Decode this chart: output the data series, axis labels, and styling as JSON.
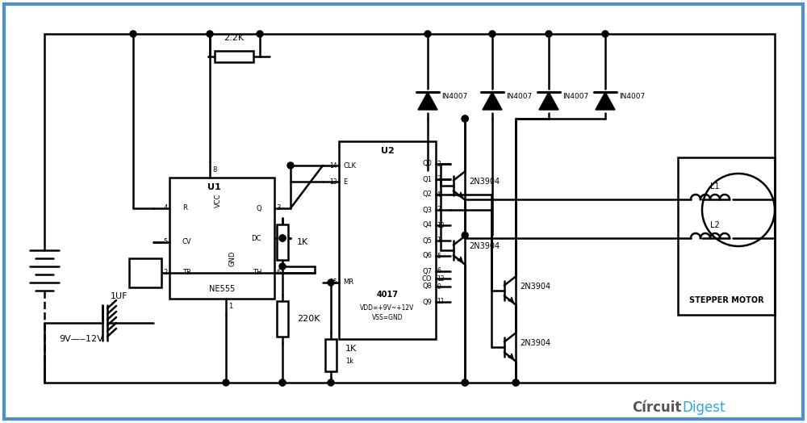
{
  "bg_color": "#ffffff",
  "border_color": "#4a90d9",
  "border_width": 3,
  "line_color": "#000000",
  "line_width": 1.5,
  "watermark_circuit": "Círcuit",
  "watermark_digest": "Digest",
  "watermark_color_circuit": "#555555",
  "watermark_color_digest": "#29abe2",
  "r1_label": "2.2K",
  "r2_label": "1K",
  "r3_label": "220K",
  "r4_label": "1K",
  "r4b_label": "1k",
  "c1_label": "1UF",
  "bat_label": "9V—‒12V",
  "ne555_label": "NE555",
  "u1_label": "U1",
  "u2_label": "U2",
  "cd4017_label": "4017",
  "vdd_label": "VDD=+9V~+12V",
  "vss_label": "VSS=GND",
  "stepper_label": "STEPPER MOTOR",
  "l1_label": "L1",
  "l2_label": "L2",
  "d_label": "IN4007",
  "q_label": "2N3904"
}
